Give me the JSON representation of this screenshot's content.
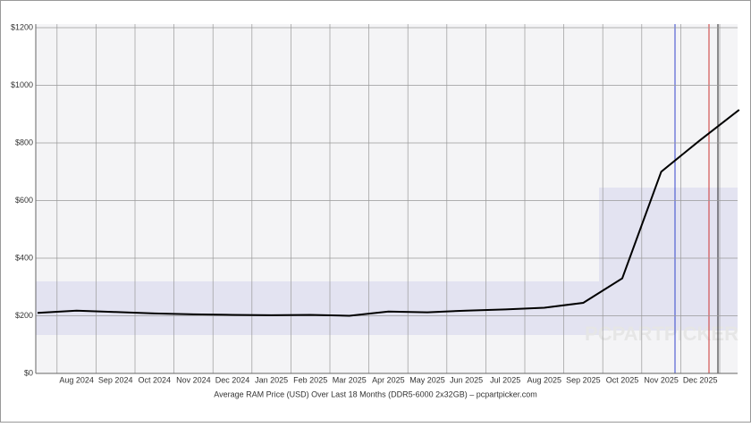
{
  "chart_data": {
    "type": "line",
    "x_label": "Average RAM Price (USD) Over Last 18 Months (DDR5-6000 2x32GB) – pcpartpicker.com",
    "watermark": "PCPARTPICKER",
    "categories": [
      null,
      "Aug 2024",
      "Sep 2024",
      "Oct 2024",
      "Nov 2024",
      "Dec 2024",
      "Jan 2025",
      "Feb 2025",
      "Mar 2025",
      "Apr 2025",
      "May 2025",
      "Jun 2025",
      "Jul 2025",
      "Aug 2025",
      "Sep 2025",
      "Oct 2025",
      "Nov 2025",
      "Dec 2025",
      null
    ],
    "series": [
      {
        "name": "Average price",
        "color": "#000000",
        "values": [
          210,
          218,
          213,
          208,
          205,
          203,
          202,
          203,
          200,
          215,
          212,
          218,
          222,
          228,
          245,
          330,
          700,
          810,
          915
        ]
      }
    ],
    "ylim": [
      0,
      1200
    ],
    "yticks": [
      {
        "value": 0,
        "label": "$0"
      },
      {
        "value": 200,
        "label": "$200"
      },
      {
        "value": 400,
        "label": "$400"
      },
      {
        "value": 600,
        "label": "$600"
      },
      {
        "value": 800,
        "label": "$800"
      },
      {
        "value": 1000,
        "label": "$1000"
      },
      {
        "value": 1200,
        "label": "$1200"
      }
    ],
    "grid": true
  }
}
